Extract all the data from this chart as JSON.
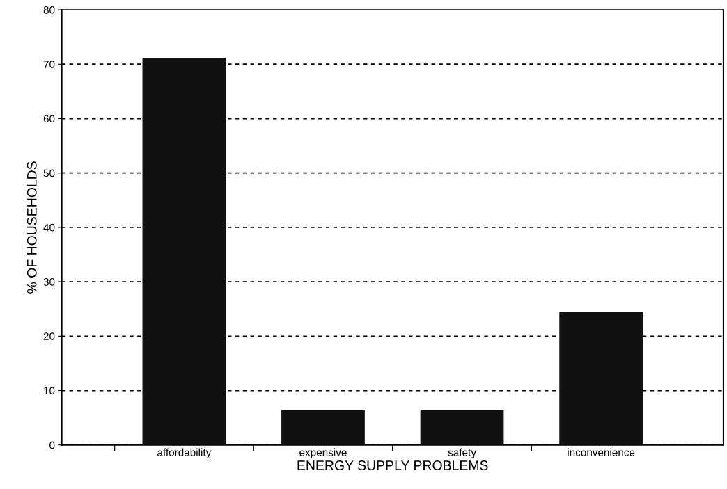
{
  "chart_data": {
    "type": "bar",
    "xlabel": "ENERGY SUPPLY PROBLEMS",
    "ylabel": "% OF HOUSEHOLDS",
    "categories": [
      "affordability",
      "expensive",
      "safety",
      "inconvenience"
    ],
    "values": [
      71.2,
      6.4,
      6.4,
      24.4
    ],
    "color": "#111111",
    "ylim": [
      0,
      80
    ],
    "yticks": [
      0,
      10,
      20,
      30,
      40,
      50,
      60,
      70,
      80
    ],
    "grid": "y"
  }
}
